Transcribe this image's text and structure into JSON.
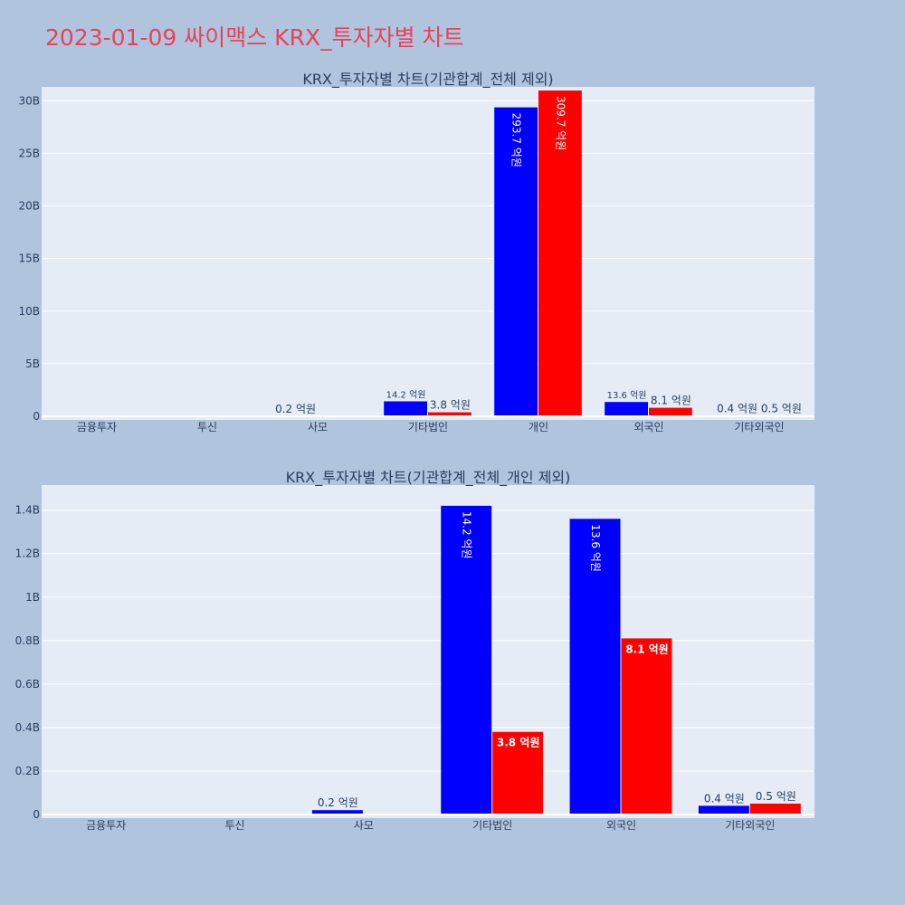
{
  "title": "2023-01-09 싸이맥스 KRX_투자자별 차트",
  "colors": {
    "buy": "#0000ff",
    "sell": "#ff0000",
    "plot_bg": "#e5ecf6",
    "page_bg": "#b0c4de",
    "title": "#e8425a"
  },
  "chart_data": [
    {
      "type": "bar",
      "title": "KRX_투자자별 차트(기관합계_전체 제외)",
      "categories": [
        "금융투자",
        "투신",
        "사모",
        "기타법인",
        "개인",
        "외국인",
        "기타외국인"
      ],
      "series": [
        {
          "color": "#0000ff",
          "values": [
            0,
            0,
            0.02,
            1.42,
            29.37,
            1.36,
            0.04
          ],
          "labels": [
            "",
            "",
            "0.2 억원",
            "14.2 억원",
            "293.7 억원",
            "13.6 억원",
            "0.4 억원"
          ]
        },
        {
          "color": "#ff0000",
          "values": [
            0,
            0,
            0,
            0.38,
            30.97,
            0.81,
            0.05
          ],
          "labels": [
            "",
            "",
            "",
            "3.8 억원",
            "309.7 억원",
            "8.1 억원",
            "0.5 억원"
          ]
        }
      ],
      "ylim": [
        0,
        31
      ],
      "yticks": [
        0,
        5,
        10,
        15,
        20,
        25,
        30
      ],
      "ytick_labels": [
        "0",
        "5B",
        "10B",
        "15B",
        "20B",
        "25B",
        "30B"
      ],
      "grid": true,
      "legend": "none"
    },
    {
      "type": "bar",
      "title": "KRX_투자자별 차트(기관합계_전체_개인 제외)",
      "categories": [
        "금융투자",
        "투신",
        "사모",
        "기타법인",
        "외국인",
        "기타외국인"
      ],
      "series": [
        {
          "color": "#0000ff",
          "values": [
            0,
            0,
            0.02,
            1.42,
            1.36,
            0.04
          ],
          "labels": [
            "",
            "",
            "0.2 억원",
            "14.2 억원",
            "13.6 억원",
            "0.4 억원"
          ]
        },
        {
          "color": "#ff0000",
          "values": [
            0,
            0,
            0,
            0.38,
            0.81,
            0.05
          ],
          "labels": [
            "",
            "",
            "",
            "3.8 억원",
            "8.1 억원",
            "0.5 억원"
          ]
        }
      ],
      "ylim": [
        0,
        1.5
      ],
      "yticks": [
        0,
        0.2,
        0.4,
        0.6,
        0.8,
        1.0,
        1.2,
        1.4
      ],
      "ytick_labels": [
        "0",
        "0.2B",
        "0.4B",
        "0.6B",
        "0.8B",
        "1B",
        "1.2B",
        "1.4B"
      ],
      "grid": true,
      "legend": "none"
    }
  ]
}
